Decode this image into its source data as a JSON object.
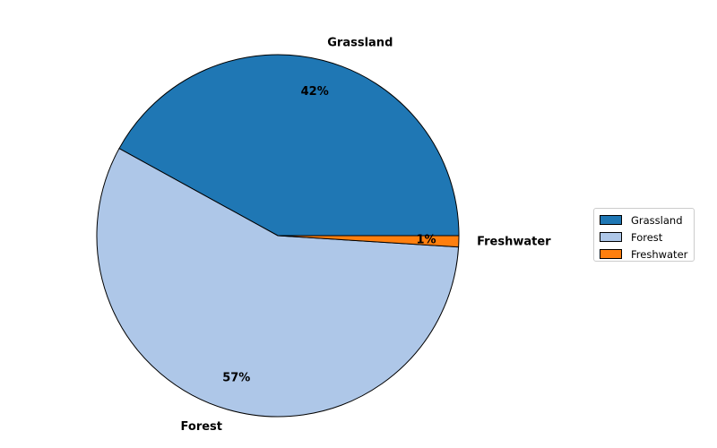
{
  "chart_data": {
    "type": "pie",
    "categories": [
      "Grassland",
      "Forest",
      "Freshwater"
    ],
    "values": [
      42,
      57,
      1
    ],
    "percent_labels": [
      "42%",
      "57%",
      "1%"
    ],
    "colors": [
      "#1f77b4",
      "#aec7e8",
      "#ff7f0e"
    ],
    "start_angle_deg": 0,
    "direction": "counterclockwise",
    "edge_color": "#000000",
    "legend": {
      "placement": "right",
      "entries": [
        "Grassland",
        "Forest",
        "Freshwater"
      ]
    }
  }
}
